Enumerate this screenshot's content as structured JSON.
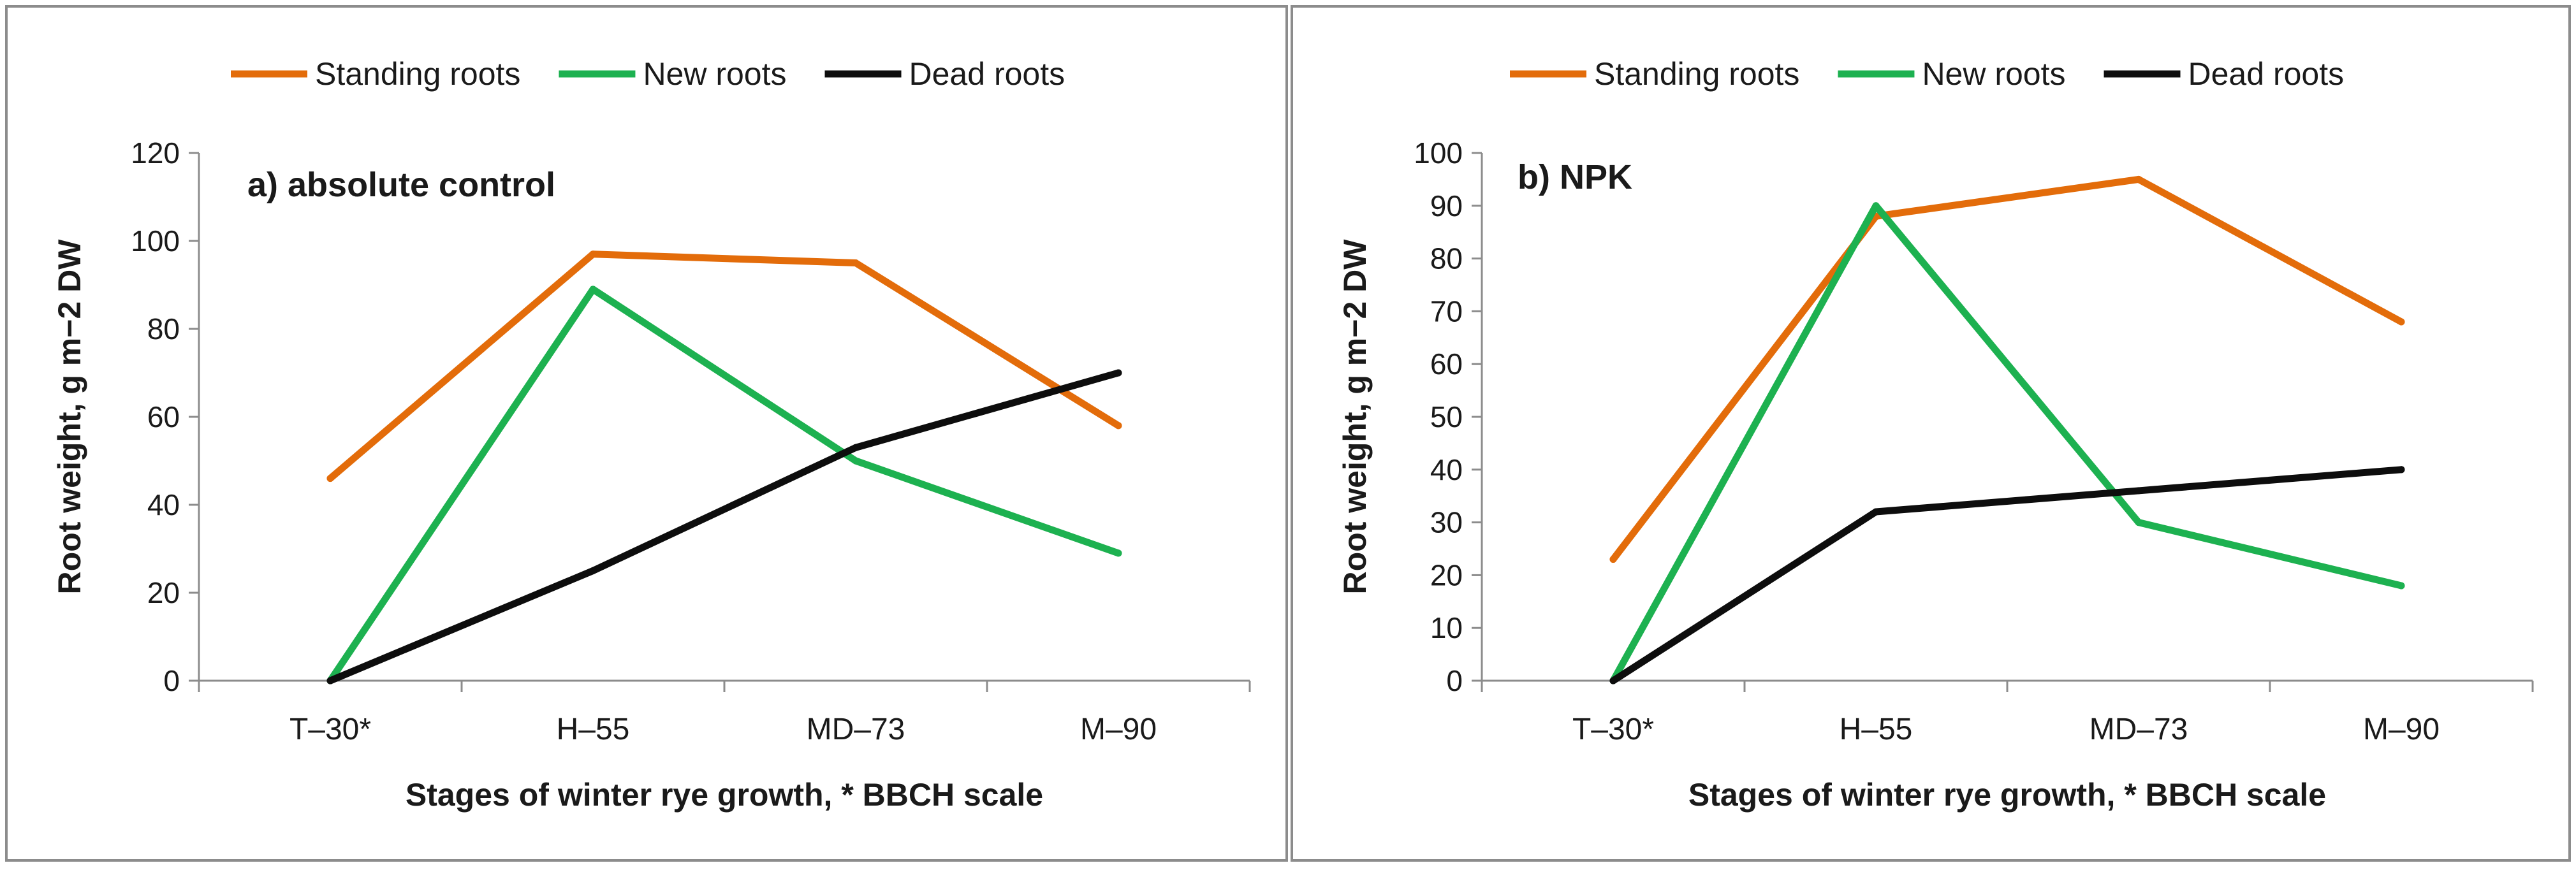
{
  "chart_data": [
    {
      "type": "line",
      "title": "a) absolute control",
      "xlabel": "Stages of winter rye growth, * BBCH scale",
      "ylabel": "Root weight, g m−2 DW",
      "categories": [
        "T–30*",
        "H–55",
        "MD–73",
        "M–90"
      ],
      "ylim": [
        0,
        120
      ],
      "yticks": [
        "0",
        "20",
        "40",
        "60",
        "80",
        "100",
        "120"
      ],
      "grid": false,
      "legend_position": "top",
      "series": [
        {
          "name": "Standing roots",
          "color": "#E36C0A",
          "values": [
            46,
            97,
            95,
            58
          ]
        },
        {
          "name": "New roots",
          "color": "#1DB150",
          "values": [
            0,
            89,
            50,
            29
          ]
        },
        {
          "name": "Dead roots",
          "color": "#0D0D0D",
          "values": [
            0,
            25,
            53,
            70
          ]
        }
      ]
    },
    {
      "type": "line",
      "title": "b) NPK",
      "xlabel": "Stages of winter rye growth, * BBCH scale",
      "ylabel": "Root weight, g m−2 DW",
      "categories": [
        "T–30*",
        "H–55",
        "MD–73",
        "M–90"
      ],
      "ylim": [
        0,
        100
      ],
      "yticks": [
        "0",
        "10",
        "20",
        "30",
        "40",
        "50",
        "60",
        "70",
        "80",
        "90",
        "100"
      ],
      "grid": false,
      "legend_position": "top",
      "series": [
        {
          "name": "Standing roots",
          "color": "#E36C0A",
          "values": [
            23,
            88,
            95,
            68
          ]
        },
        {
          "name": "New roots",
          "color": "#1DB150",
          "values": [
            0,
            90,
            30,
            18
          ]
        },
        {
          "name": "Dead roots",
          "color": "#0D0D0D",
          "values": [
            0,
            32,
            36,
            40
          ]
        }
      ]
    }
  ]
}
